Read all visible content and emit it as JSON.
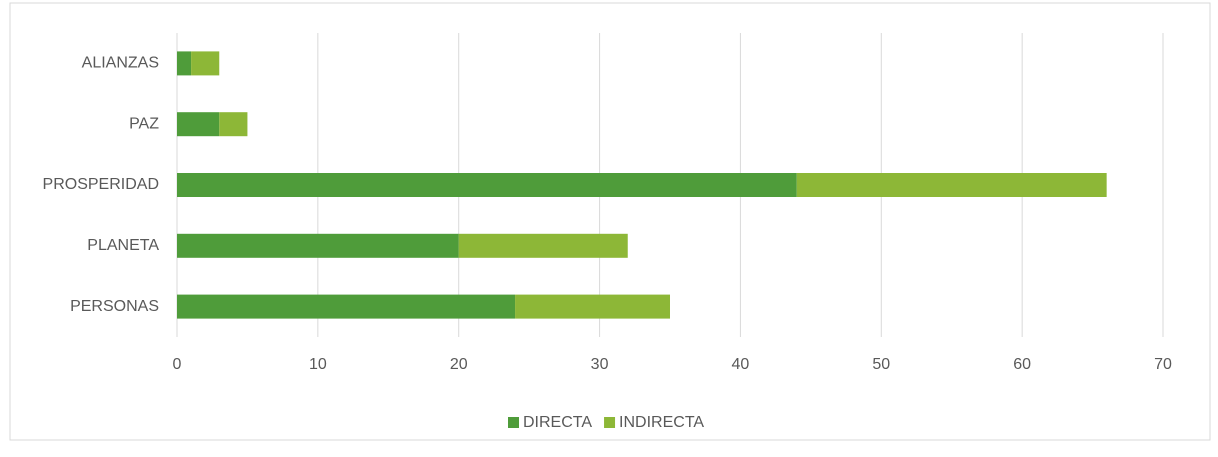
{
  "chart_data": {
    "type": "bar",
    "orientation": "horizontal",
    "stacked": true,
    "categories": [
      "ALIANZAS",
      "PAZ",
      "PROSPERIDAD",
      "PLANETA",
      "PERSONAS"
    ],
    "series": [
      {
        "name": "DIRECTA",
        "color": "#4f9c3a",
        "values": [
          1,
          3,
          44,
          20,
          24
        ]
      },
      {
        "name": "INDIRECTA",
        "color": "#8db737",
        "values": [
          2,
          2,
          22,
          12,
          11
        ]
      }
    ],
    "xlim": [
      0,
      70
    ],
    "xticks": [
      0,
      10,
      20,
      30,
      40,
      50,
      60,
      70
    ],
    "grid": true,
    "legend": "bottom"
  }
}
